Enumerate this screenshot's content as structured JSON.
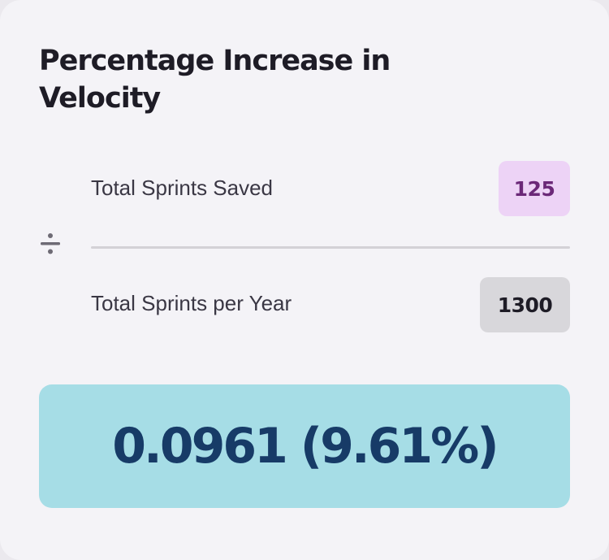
{
  "card": {
    "title": "Percentage Increase in Velocity"
  },
  "numerator": {
    "label": "Total Sprints Saved",
    "value": "125"
  },
  "denominator": {
    "label": "Total Sprints per Year",
    "value": "1300"
  },
  "operator": {
    "icon": "divide-icon"
  },
  "result": {
    "value": "0.0961 (9.61%)"
  },
  "colors": {
    "card_bg": "#f4f3f7",
    "numerator_chip_bg": "#edd3f6",
    "numerator_chip_text": "#6b2878",
    "denominator_chip_bg": "#d8d7db",
    "result_bg": "#a6dde6",
    "result_text": "#173b67"
  }
}
